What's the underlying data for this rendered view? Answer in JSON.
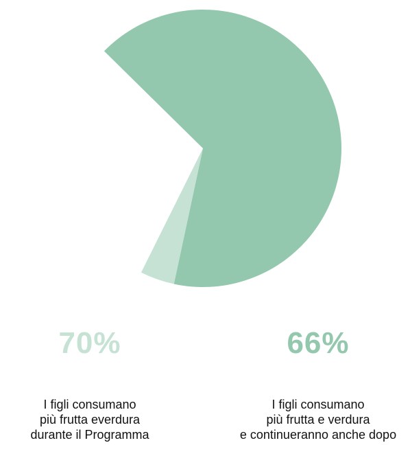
{
  "chart_data": {
    "type": "pie",
    "slices": [
      {
        "label": "I figli consumano più frutta e verdura e continueranno anche dopo",
        "value": 66,
        "color": "#93c8ae"
      },
      {
        "label": "I figli consumano più frutta everdura durante il Programma",
        "value": 4,
        "color": "#c6e2d4"
      }
    ],
    "total": 100,
    "title": "",
    "start_at_top": false
  },
  "stats": [
    {
      "value": "70%",
      "color": "#c6e2d4",
      "lines": [
        "I figli consumano",
        "più frutta everdura",
        "durante il Programma"
      ]
    },
    {
      "value": "66%",
      "color": "#93c8ae",
      "lines": [
        "I figli consumano",
        "più frutta e verdura",
        "e continueranno anche dopo"
      ]
    }
  ]
}
